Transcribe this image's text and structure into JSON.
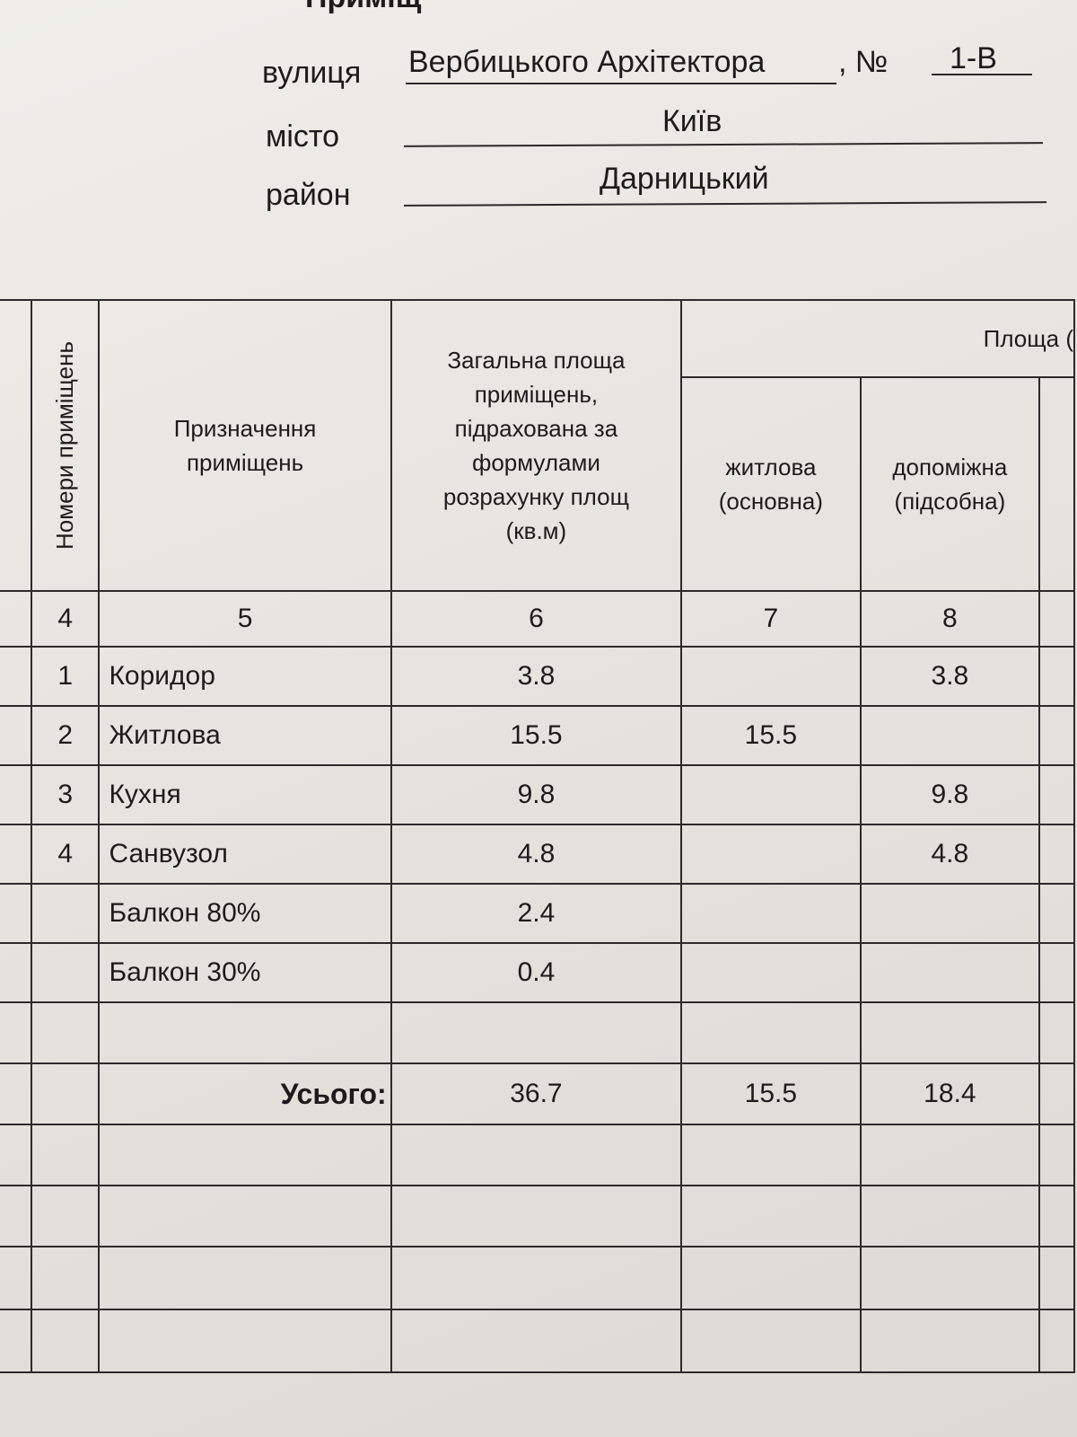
{
  "heading_partial": "Приміщ",
  "address": {
    "street_label": "вулиця",
    "street_value": "Вербицького Архітектора",
    "number_label": ", №",
    "number_value": "1-В",
    "city_label": "місто",
    "city_value": "Київ",
    "district_label": "район",
    "district_value": "Дарницький"
  },
  "table": {
    "headers": {
      "room_numbers": "Номери приміщень",
      "purpose": "Призначення приміщень",
      "total_area": "Загальна площа приміщень, підрахована за формулами розрахунку площ (кв.м)",
      "area_group": "Площа (",
      "living": "житлова (основна)",
      "auxiliary": "допоміжна (підсобна)"
    },
    "column_numbers": [
      "4",
      "5",
      "6",
      "7",
      "8"
    ],
    "rows": [
      {
        "num": "1",
        "purpose": "Коридор",
        "total": "3.8",
        "living": "",
        "aux": "3.8"
      },
      {
        "num": "2",
        "purpose": "Житлова",
        "total": "15.5",
        "living": "15.5",
        "aux": ""
      },
      {
        "num": "3",
        "purpose": "Кухня",
        "total": "9.8",
        "living": "",
        "aux": "9.8"
      },
      {
        "num": "4",
        "purpose": "Санвузол",
        "total": "4.8",
        "living": "",
        "aux": "4.8"
      },
      {
        "num": "",
        "purpose": "Балкон 80%",
        "total": "2.4",
        "living": "",
        "aux": ""
      },
      {
        "num": "",
        "purpose": "Балкон 30%",
        "total": "0.4",
        "living": "",
        "aux": ""
      }
    ],
    "totals": {
      "label": "Усього:",
      "total": "36.7",
      "living": "15.5",
      "aux": "18.4"
    }
  }
}
